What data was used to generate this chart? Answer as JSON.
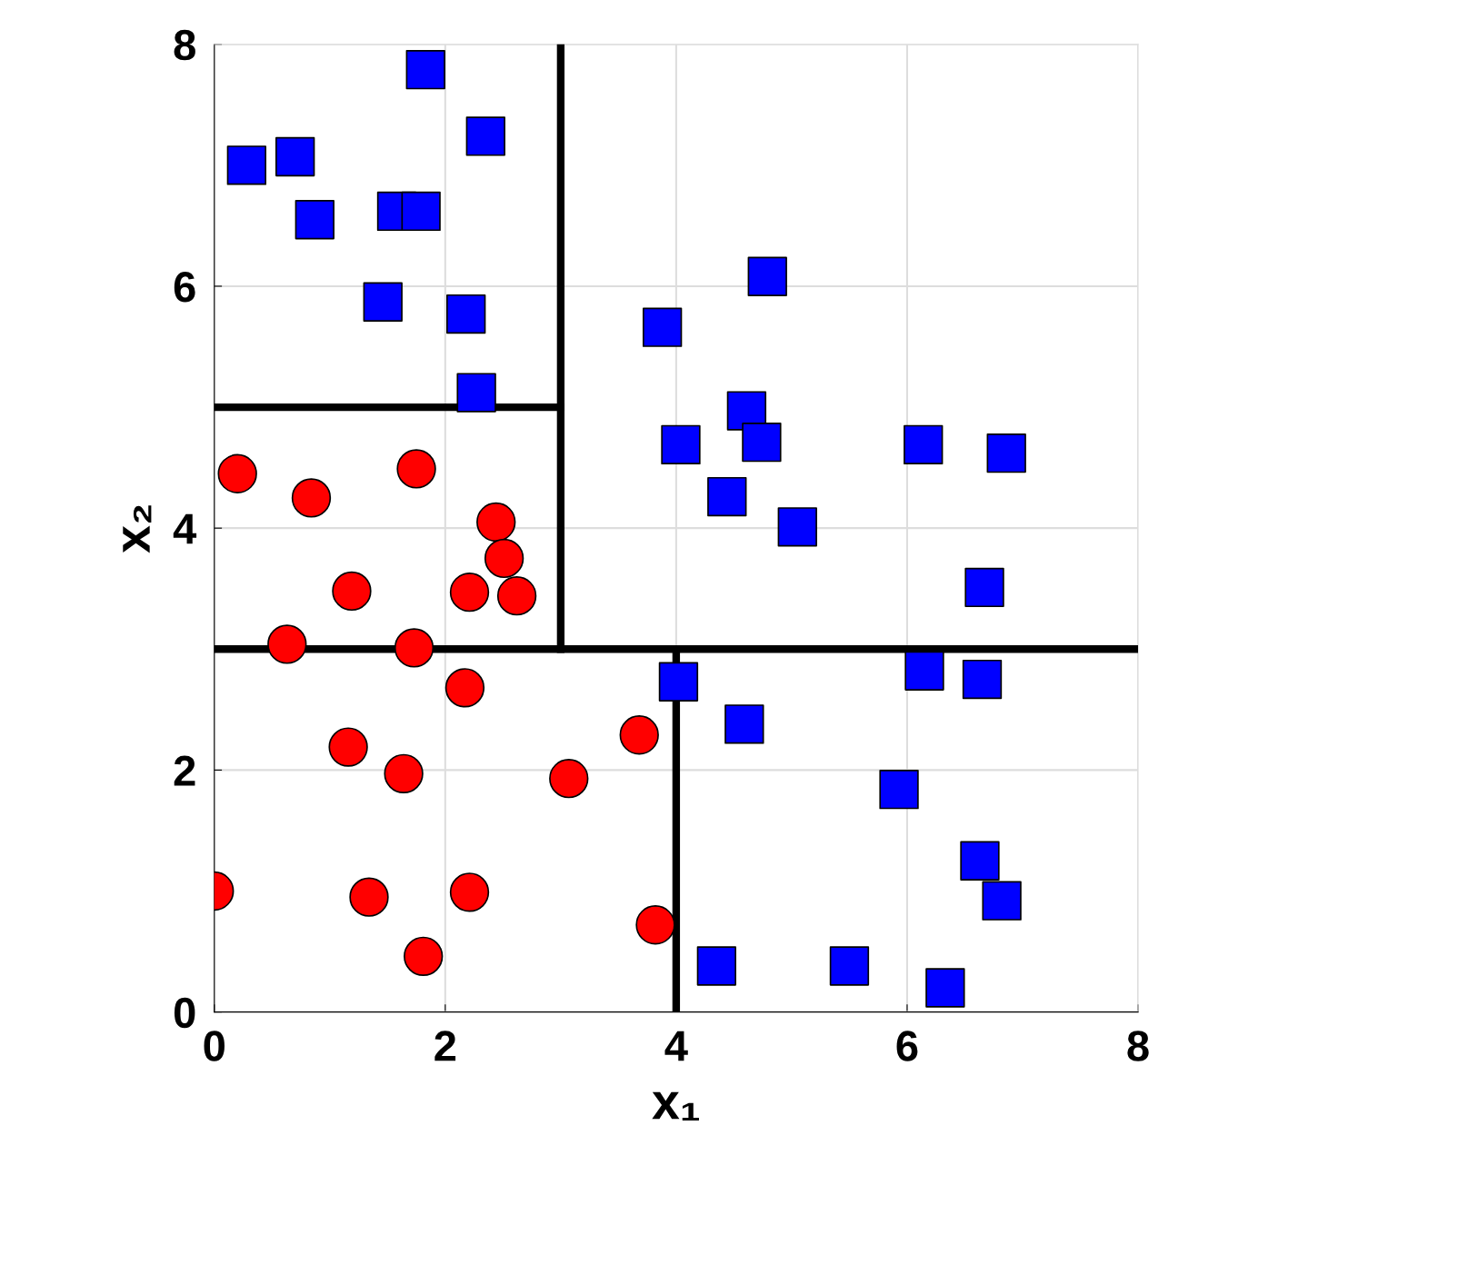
{
  "chart_data": {
    "type": "scatter",
    "xlabel": "x₁",
    "ylabel": "x₂",
    "xlim": [
      0,
      8
    ],
    "ylim": [
      0,
      8
    ],
    "xticks": [
      0,
      2,
      4,
      6,
      8
    ],
    "yticks": [
      0,
      2,
      4,
      6,
      8
    ],
    "grid": true,
    "series": [
      {
        "marker": "circle",
        "color": "#ff0000",
        "x": [
          0.2,
          0.84,
          1.75,
          2.44,
          2.51,
          1.19,
          2.21,
          2.62,
          0.63,
          1.73,
          2.17,
          1.16,
          1.64,
          3.07,
          3.68,
          0.0,
          1.34,
          2.21,
          1.81,
          3.82
        ],
        "values": [
          4.45,
          4.25,
          4.49,
          4.05,
          3.75,
          3.48,
          3.47,
          3.44,
          3.04,
          3.01,
          2.68,
          2.19,
          1.97,
          1.93,
          2.29,
          1.0,
          0.95,
          0.99,
          0.46,
          0.72
        ]
      },
      {
        "marker": "square",
        "color": "#0000ff",
        "x": [
          0.28,
          0.7,
          1.83,
          2.35,
          0.87,
          1.58,
          1.79,
          1.46,
          2.18,
          2.27,
          4.79,
          3.88,
          4.61,
          4.04,
          4.74,
          4.44,
          5.05,
          6.14,
          6.86,
          6.67,
          4.02,
          4.59,
          6.15,
          6.65,
          5.93,
          6.63,
          6.82,
          4.35,
          5.5,
          6.33
        ],
        "values": [
          7.0,
          7.07,
          7.79,
          7.24,
          6.55,
          6.62,
          6.62,
          5.87,
          5.77,
          5.12,
          6.08,
          5.66,
          4.97,
          4.69,
          4.71,
          4.26,
          4.01,
          4.69,
          4.62,
          3.51,
          2.73,
          2.38,
          2.82,
          2.75,
          1.84,
          1.25,
          0.92,
          0.38,
          0.38,
          0.2
        ]
      },
      {
        "type": "line",
        "marker": "none",
        "color": "#000000",
        "x": [
          0,
          8
        ],
        "values": [
          3,
          3
        ]
      },
      {
        "type": "line",
        "marker": "none",
        "color": "#000000",
        "x": [
          3,
          3
        ],
        "values": [
          3,
          8
        ]
      },
      {
        "type": "line",
        "marker": "none",
        "color": "#000000",
        "x": [
          0,
          3
        ],
        "values": [
          5,
          5
        ]
      },
      {
        "type": "line",
        "marker": "none",
        "color": "#000000",
        "x": [
          4,
          4
        ],
        "values": [
          0,
          3
        ]
      }
    ]
  }
}
